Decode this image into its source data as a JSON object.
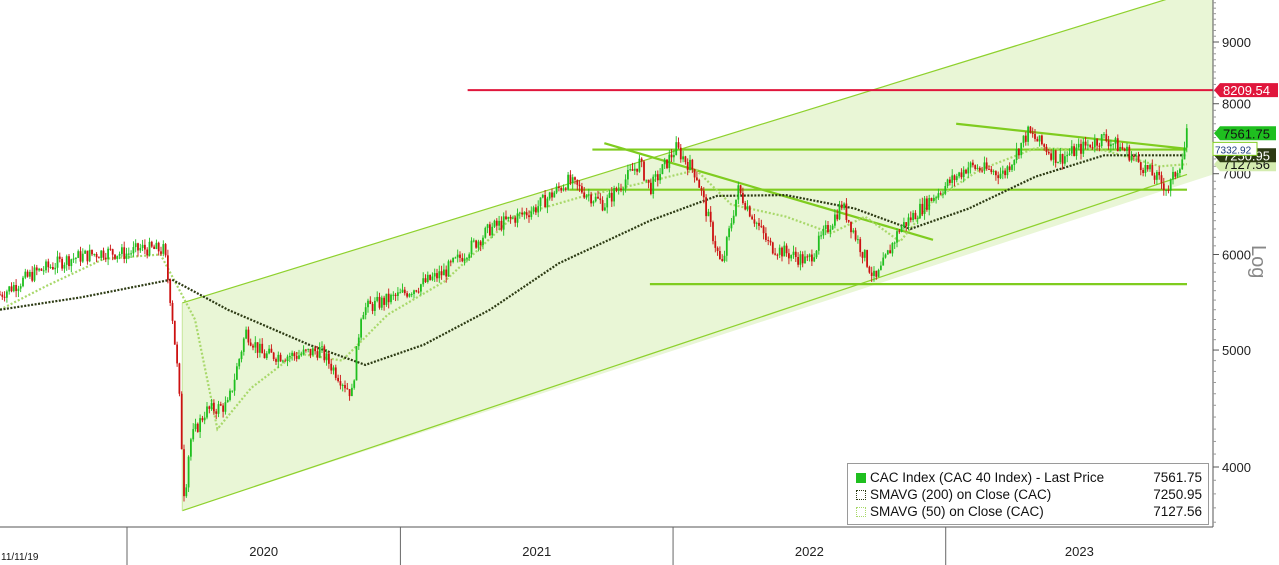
{
  "chart_data": {
    "type": "line",
    "title": "",
    "y_scale": "log",
    "ylabel": "Log",
    "ylim": [
      3500,
      9800
    ],
    "x_range": [
      "2019-07-15",
      "2023-11-20"
    ],
    "x_ticks": [
      "2020",
      "2021",
      "2022",
      "2023"
    ],
    "y_ticks": [
      4000,
      5000,
      6000,
      7000,
      8000,
      9000
    ],
    "grid": false,
    "legend_position": "bottom-right",
    "colors": {
      "price": "#1fbf1f",
      "down": "#cc1111",
      "sma200": "#2c3a13",
      "sma50": "#a8d86a",
      "channel": "#8ed12d",
      "resistance": "#e0163c"
    },
    "series": [
      {
        "name": "CAC Index (CAC 40 Index) - Last Price",
        "last": 7561.75,
        "points": [
          [
            "2019-07-15",
            5560
          ],
          [
            "2019-09-01",
            5800
          ],
          [
            "2019-10-15",
            5950
          ],
          [
            "2019-12-01",
            6030
          ],
          [
            "2020-01-01",
            6010
          ],
          [
            "2020-01-20",
            6070
          ],
          [
            "2020-02-20",
            6050
          ],
          [
            "2020-03-01",
            5400
          ],
          [
            "2020-03-10",
            4700
          ],
          [
            "2020-03-18",
            3750
          ],
          [
            "2020-03-25",
            4200
          ],
          [
            "2020-04-15",
            4450
          ],
          [
            "2020-05-15",
            4500
          ],
          [
            "2020-06-08",
            5180
          ],
          [
            "2020-07-01",
            4950
          ],
          [
            "2020-08-15",
            4950
          ],
          [
            "2020-09-15",
            5000
          ],
          [
            "2020-10-28",
            4600
          ],
          [
            "2020-11-10",
            5400
          ],
          [
            "2020-12-31",
            5550
          ],
          [
            "2021-03-01",
            5800
          ],
          [
            "2021-05-01",
            6300
          ],
          [
            "2021-06-30",
            6550
          ],
          [
            "2021-08-13",
            6900
          ],
          [
            "2021-10-01",
            6600
          ],
          [
            "2021-11-17",
            7150
          ],
          [
            "2021-12-01",
            6800
          ],
          [
            "2022-01-05",
            7350
          ],
          [
            "2022-02-01",
            7000
          ],
          [
            "2022-03-07",
            5850
          ],
          [
            "2022-03-29",
            6790
          ],
          [
            "2022-05-10",
            6100
          ],
          [
            "2022-06-30",
            5920
          ],
          [
            "2022-08-15",
            6600
          ],
          [
            "2022-09-29",
            5700
          ],
          [
            "2022-10-31",
            6300
          ],
          [
            "2022-12-15",
            6700
          ],
          [
            "2023-01-31",
            7100
          ],
          [
            "2023-03-20",
            7000
          ],
          [
            "2023-04-21",
            7570
          ],
          [
            "2023-06-01",
            7200
          ],
          [
            "2023-07-31",
            7500
          ],
          [
            "2023-09-01",
            7300
          ],
          [
            "2023-10-26",
            6800
          ],
          [
            "2023-11-15",
            7250
          ],
          [
            "2023-11-20",
            7561.75
          ]
        ]
      },
      {
        "name": "SMAVG (200)  on Close (CAC)",
        "last": 7250.95,
        "points": [
          [
            "2019-07-15",
            5400
          ],
          [
            "2019-11-01",
            5530
          ],
          [
            "2020-03-01",
            5720
          ],
          [
            "2020-05-15",
            5400
          ],
          [
            "2020-09-01",
            5050
          ],
          [
            "2020-11-15",
            4860
          ],
          [
            "2021-02-01",
            5050
          ],
          [
            "2021-05-01",
            5400
          ],
          [
            "2021-08-01",
            5900
          ],
          [
            "2021-12-01",
            6400
          ],
          [
            "2022-03-01",
            6710
          ],
          [
            "2022-06-01",
            6720
          ],
          [
            "2022-09-01",
            6550
          ],
          [
            "2022-11-15",
            6300
          ],
          [
            "2023-02-01",
            6550
          ],
          [
            "2023-05-01",
            6960
          ],
          [
            "2023-08-01",
            7250
          ],
          [
            "2023-11-20",
            7250.95
          ]
        ]
      },
      {
        "name": "SMAVG (50)  on Close (CAC)",
        "last": 7127.56,
        "points": [
          [
            "2019-07-15",
            5400
          ],
          [
            "2019-09-15",
            5650
          ],
          [
            "2019-12-01",
            5950
          ],
          [
            "2020-02-15",
            6000
          ],
          [
            "2020-04-01",
            5300
          ],
          [
            "2020-05-01",
            4300
          ],
          [
            "2020-06-15",
            4650
          ],
          [
            "2020-08-15",
            4970
          ],
          [
            "2020-10-15",
            4900
          ],
          [
            "2020-12-15",
            5350
          ],
          [
            "2021-03-01",
            5700
          ],
          [
            "2021-06-01",
            6450
          ],
          [
            "2021-09-01",
            6700
          ],
          [
            "2021-12-01",
            6900
          ],
          [
            "2022-02-01",
            7050
          ],
          [
            "2022-03-20",
            6600
          ],
          [
            "2022-06-01",
            6450
          ],
          [
            "2022-08-01",
            6250
          ],
          [
            "2022-09-15",
            6450
          ],
          [
            "2022-11-01",
            6150
          ],
          [
            "2022-12-15",
            6650
          ],
          [
            "2023-02-15",
            7050
          ],
          [
            "2023-05-01",
            7350
          ],
          [
            "2023-08-01",
            7320
          ],
          [
            "2023-10-15",
            7100
          ],
          [
            "2023-11-20",
            7127.56
          ]
        ]
      }
    ],
    "annotations": [
      {
        "label": "8209.54",
        "kind": "horizontal-level",
        "y": 8209.54,
        "from": "2021-04-01"
      },
      {
        "label": "7561.75",
        "kind": "last-value-tag"
      },
      {
        "label": "7332.92",
        "kind": "cursor-value-tag"
      },
      {
        "label": "7250.95",
        "kind": "last-value-tag"
      },
      {
        "label": "7127.56",
        "kind": "last-value-tag"
      }
    ],
    "trendlines": [
      {
        "name": "channel-upper",
        "from": [
          "2020-03-15",
          5470
        ],
        "to": [
          "2023-11-01",
          9800
        ]
      },
      {
        "name": "channel-lower",
        "from": [
          "2020-03-15",
          3680
        ],
        "to": [
          "2023-11-20",
          6990
        ]
      },
      {
        "name": "level-7330",
        "from": [
          "2021-09-15",
          7330
        ],
        "to": [
          "2023-11-20",
          7330
        ]
      },
      {
        "name": "level-6790",
        "from": [
          "2021-08-15",
          6790
        ],
        "to": [
          "2023-11-20",
          6790
        ]
      },
      {
        "name": "level-5670",
        "from": [
          "2021-12-01",
          5670
        ],
        "to": [
          "2023-11-20",
          5670
        ]
      },
      {
        "name": "falling-2022",
        "from": [
          "2021-10-01",
          7420
        ],
        "to": [
          "2022-12-15",
          6170
        ]
      },
      {
        "name": "falling-2023",
        "from": [
          "2023-01-15",
          7700
        ],
        "to": [
          "2023-11-20",
          7340
        ]
      }
    ]
  },
  "legend": {
    "items": [
      {
        "label": "CAC Index (CAC 40 Index) - Last Price",
        "value": "7561.75"
      },
      {
        "label": "SMAVG (200)  on Close (CAC)",
        "value": "7250.95"
      },
      {
        "label": "SMAVG (50)  on Close (CAC)",
        "value": "7127.56"
      }
    ]
  },
  "cursor_date": "11/11/19"
}
